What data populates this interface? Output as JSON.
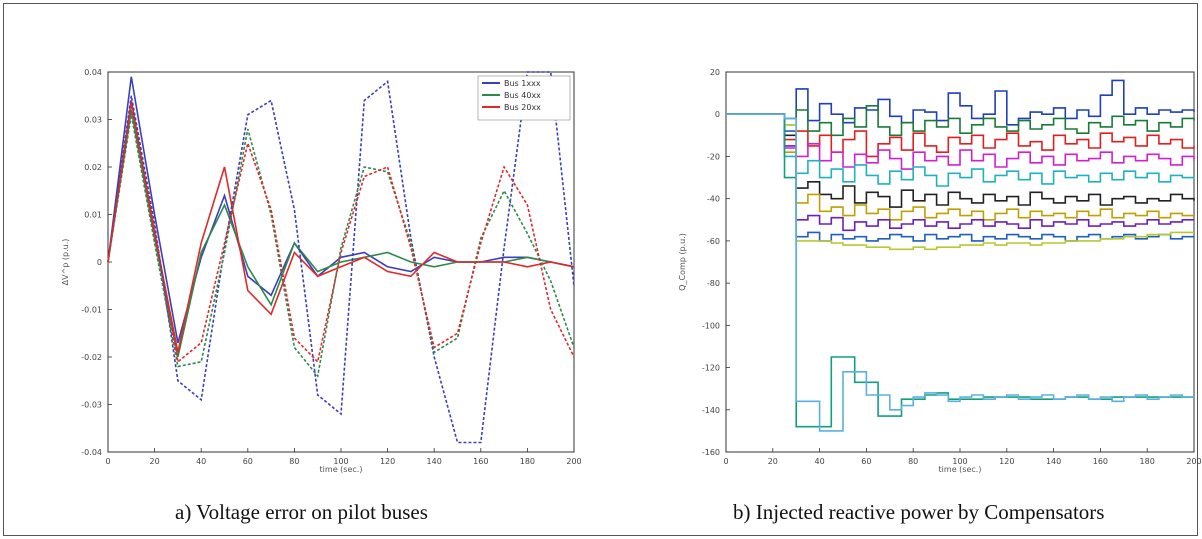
{
  "captions": {
    "a": "a) Voltage error on pilot buses",
    "b": "b) Injected reactive power by Compensators"
  },
  "chart_data": [
    {
      "type": "line",
      "title": "",
      "xlabel": "time (sec.)",
      "ylabel": "ΔV^p (p.u.)",
      "xlim": [
        0,
        200
      ],
      "ylim": [
        -0.04,
        0.04
      ],
      "xticks": [
        0,
        20,
        40,
        60,
        80,
        100,
        120,
        140,
        160,
        180,
        200
      ],
      "yticks": [
        -0.04,
        -0.03,
        -0.02,
        -0.01,
        0,
        0.01,
        0.02,
        0.03,
        0.04
      ],
      "ytick_labels": [
        "-0.04",
        "-0.03",
        "-0.02",
        "-0.01",
        "0",
        "0.01",
        "0.02",
        "0.03",
        "0.04"
      ],
      "grid": false,
      "legend_position": "top-right",
      "x": [
        0,
        10,
        20,
        30,
        40,
        50,
        60,
        70,
        80,
        90,
        100,
        110,
        120,
        130,
        140,
        150,
        160,
        170,
        180,
        190,
        200
      ],
      "series": [
        {
          "name": "Bus 1xxx",
          "color": "#3a3fbf",
          "style": "solid",
          "values": [
            0,
            0.039,
            0.01,
            -0.017,
            0.001,
            0.014,
            -0.003,
            -0.007,
            0.004,
            -0.003,
            0.001,
            0.002,
            -0.001,
            -0.002,
            0.001,
            0.0,
            0.0,
            0.001,
            0.001,
            0.0,
            -0.001
          ]
        },
        {
          "name": "Bus 40xx",
          "color": "#2e8a4a",
          "style": "solid",
          "values": [
            0,
            0.032,
            0.005,
            -0.02,
            0.002,
            0.012,
            -0.001,
            -0.009,
            0.004,
            -0.002,
            0.0,
            0.001,
            0.002,
            0.0,
            -0.001,
            0.0,
            0.0,
            0.0,
            0.001,
            0.0,
            -0.001
          ]
        },
        {
          "name": "Bus 20xx",
          "color": "#e02a2a",
          "style": "solid",
          "values": [
            0,
            0.034,
            0.006,
            -0.019,
            0.004,
            0.02,
            -0.006,
            -0.011,
            0.002,
            -0.003,
            -0.001,
            0.001,
            -0.002,
            -0.003,
            0.002,
            0.0,
            0.0,
            0.0,
            -0.001,
            0.0,
            -0.001
          ]
        },
        {
          "name": "",
          "color": "#3a3fbf",
          "style": "dashed",
          "values": [
            0,
            0.035,
            0.008,
            -0.025,
            -0.029,
            0.003,
            0.031,
            0.034,
            0.011,
            -0.028,
            -0.032,
            0.034,
            0.038,
            0.005,
            -0.02,
            -0.038,
            -0.038,
            0.003,
            0.04,
            0.04,
            -0.005
          ]
        },
        {
          "name": "",
          "color": "#2e8a4a",
          "style": "dashed",
          "values": [
            0,
            0.031,
            0.004,
            -0.022,
            -0.021,
            0.002,
            0.028,
            0.01,
            -0.018,
            -0.024,
            0.003,
            0.02,
            0.019,
            0.004,
            -0.019,
            -0.016,
            0.005,
            0.015,
            0.006,
            -0.004,
            -0.018
          ]
        },
        {
          "name": "",
          "color": "#e02a2a",
          "style": "dashed",
          "values": [
            0,
            0.033,
            0.007,
            -0.021,
            -0.017,
            0.004,
            0.025,
            0.011,
            -0.016,
            -0.021,
            0.002,
            0.018,
            0.02,
            0.003,
            -0.018,
            -0.015,
            0.004,
            0.02,
            0.012,
            -0.01,
            -0.02
          ]
        }
      ]
    },
    {
      "type": "line",
      "title": "",
      "xlabel": "time (sec.)",
      "ylabel": "Q_Comp (p.u.)",
      "xlim": [
        0,
        200
      ],
      "ylim": [
        -160,
        20
      ],
      "xticks": [
        0,
        20,
        40,
        60,
        80,
        100,
        120,
        140,
        160,
        180,
        200
      ],
      "yticks": [
        -160,
        -140,
        -120,
        -100,
        -80,
        -60,
        -40,
        -20,
        0,
        20
      ],
      "grid": false,
      "x": [
        0,
        20,
        25,
        30,
        35,
        40,
        45,
        50,
        55,
        60,
        65,
        70,
        75,
        80,
        85,
        90,
        95,
        100,
        105,
        110,
        115,
        120,
        125,
        130,
        135,
        140,
        145,
        150,
        155,
        160,
        165,
        170,
        175,
        180,
        185,
        190,
        195,
        200
      ],
      "series": [
        {
          "name": "",
          "color": "#1f3fbf",
          "values": [
            0,
            0,
            -2,
            12,
            -3,
            5,
            0,
            -4,
            3,
            2,
            7,
            -1,
            -4,
            2,
            1,
            -3,
            10,
            4,
            -2,
            0,
            11,
            -5,
            -2,
            1,
            0,
            3,
            -2,
            2,
            -1,
            9,
            16,
            0,
            3,
            0,
            2,
            1,
            2,
            1
          ]
        },
        {
          "name": "",
          "color": "#1a7a3a",
          "values": [
            0,
            0,
            -5,
            2,
            -8,
            -4,
            -10,
            -2,
            -6,
            4,
            -6,
            -10,
            -4,
            -8,
            -3,
            -6,
            -2,
            -9,
            -5,
            -2,
            -6,
            -8,
            -3,
            -7,
            -5,
            -2,
            -7,
            -9,
            -4,
            -6,
            -1,
            -5,
            -3,
            -8,
            -4,
            -6,
            -2,
            -3
          ]
        },
        {
          "name": "",
          "color": "#e02020",
          "values": [
            0,
            0,
            -12,
            -8,
            -15,
            -10,
            -18,
            -12,
            -8,
            -20,
            -14,
            -11,
            -17,
            -9,
            -15,
            -18,
            -11,
            -14,
            -10,
            -16,
            -12,
            -9,
            -15,
            -13,
            -17,
            -10,
            -14,
            -12,
            -16,
            -9,
            -13,
            -11,
            -15,
            -10,
            -14,
            -12,
            -16,
            -15
          ]
        },
        {
          "name": "",
          "color": "#d020d0",
          "values": [
            0,
            0,
            -16,
            -20,
            -14,
            -22,
            -18,
            -25,
            -19,
            -23,
            -17,
            -21,
            -26,
            -18,
            -22,
            -20,
            -24,
            -17,
            -22,
            -19,
            -25,
            -21,
            -18,
            -23,
            -20,
            -24,
            -19,
            -22,
            -21,
            -18,
            -23,
            -20,
            -22,
            -19,
            -21,
            -24,
            -20,
            -22
          ]
        },
        {
          "name": "",
          "color": "#20b0c0",
          "values": [
            0,
            0,
            -20,
            -28,
            -22,
            -30,
            -26,
            -32,
            -24,
            -29,
            -33,
            -27,
            -31,
            -25,
            -29,
            -34,
            -28,
            -30,
            -26,
            -32,
            -29,
            -27,
            -31,
            -28,
            -33,
            -27,
            -30,
            -29,
            -32,
            -28,
            -31,
            -27,
            -30,
            -28,
            -32,
            -29,
            -30,
            -31
          ]
        },
        {
          "name": "",
          "color": "#222222",
          "values": [
            0,
            0,
            -10,
            -35,
            -32,
            -38,
            -40,
            -34,
            -42,
            -37,
            -39,
            -44,
            -36,
            -41,
            -38,
            -43,
            -37,
            -40,
            -42,
            -38,
            -41,
            -39,
            -43,
            -37,
            -40,
            -42,
            -39,
            -41,
            -38,
            -43,
            -40,
            -39,
            -42,
            -40,
            -41,
            -38,
            -40,
            -41
          ]
        },
        {
          "name": "",
          "color": "#c0a000",
          "values": [
            0,
            0,
            -18,
            -42,
            -38,
            -46,
            -44,
            -48,
            -43,
            -47,
            -45,
            -50,
            -46,
            -44,
            -49,
            -47,
            -45,
            -48,
            -46,
            -50,
            -47,
            -45,
            -49,
            -46,
            -48,
            -47,
            -49,
            -46,
            -48,
            -45,
            -49,
            -47,
            -48,
            -46,
            -49,
            -47,
            -48,
            -48
          ]
        },
        {
          "name": "",
          "color": "#6a20c0",
          "values": [
            0,
            0,
            -15,
            -50,
            -48,
            -52,
            -49,
            -55,
            -51,
            -53,
            -50,
            -54,
            -52,
            -50,
            -53,
            -51,
            -54,
            -52,
            -50,
            -53,
            -51,
            -52,
            -54,
            -50,
            -53,
            -51,
            -52,
            -50,
            -53,
            -52,
            -51,
            -53,
            -52,
            -50,
            -52,
            -51,
            -50,
            -50
          ]
        },
        {
          "name": "",
          "color": "#1f5fbf",
          "values": [
            0,
            0,
            -8,
            -58,
            -56,
            -60,
            -57,
            -59,
            -58,
            -60,
            -59,
            -57,
            -58,
            -60,
            -57,
            -59,
            -58,
            -57,
            -60,
            -58,
            -59,
            -57,
            -58,
            -59,
            -57,
            -58,
            -60,
            -58,
            -57,
            -59,
            -58,
            -57,
            -59,
            -58,
            -57,
            -59,
            -58,
            -58
          ]
        },
        {
          "name": "",
          "color": "#b8c830",
          "values": [
            0,
            0,
            -5,
            -60,
            -60,
            -60,
            -61,
            -62,
            -62,
            -63,
            -63,
            -64,
            -64,
            -63,
            -64,
            -63,
            -63,
            -62,
            -62,
            -61,
            -62,
            -61,
            -61,
            -62,
            -61,
            -61,
            -60,
            -60,
            -60,
            -59,
            -59,
            -58,
            -58,
            -57,
            -57,
            -56,
            -56,
            -56
          ]
        },
        {
          "name": "",
          "color": "#10a080",
          "values": [
            0,
            0,
            -30,
            -148,
            -148,
            -148,
            -115,
            -115,
            -127,
            -127,
            -143,
            -143,
            -135,
            -135,
            -133,
            -132,
            -135,
            -135,
            -135,
            -134,
            -134,
            -134,
            -134,
            -135,
            -135,
            -135,
            -134,
            -134,
            -135,
            -135,
            -134,
            -134,
            -134,
            -134,
            -134,
            -134,
            -134,
            -134
          ]
        },
        {
          "name": "",
          "color": "#5ab0e0",
          "values": [
            0,
            0,
            -2,
            -136,
            -136,
            -150,
            -150,
            -122,
            -122,
            -133,
            -133,
            -140,
            -138,
            -134,
            -132,
            -133,
            -136,
            -134,
            -133,
            -135,
            -134,
            -133,
            -135,
            -134,
            -133,
            -135,
            -134,
            -133,
            -135,
            -134,
            -136,
            -134,
            -133,
            -135,
            -134,
            -133,
            -134,
            -134
          ]
        }
      ]
    }
  ]
}
